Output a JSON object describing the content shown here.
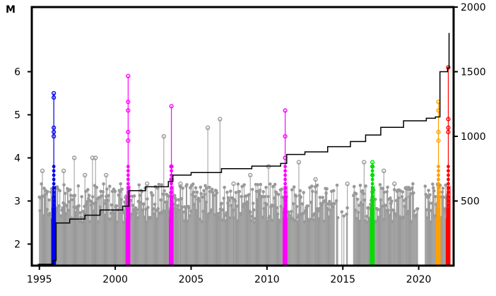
{
  "chart_data": {
    "type": "scatter",
    "description_axes": "stem plot of magnitudes over time with cumulative count step line on right axis",
    "ylabel_left": "M",
    "xlim": [
      1994.5,
      2022.3
    ],
    "ylim_left": [
      1.5,
      7.5
    ],
    "ylim_right": [
      0,
      2000
    ],
    "x_ticks": [
      "1995",
      "2000",
      "2005",
      "2010",
      "2015",
      "2020"
    ],
    "x_tick_values": [
      1995,
      2000,
      2005,
      2010,
      2015,
      2020
    ],
    "y_left_ticks": [
      "2",
      "3",
      "4",
      "5",
      "6"
    ],
    "y_left_tick_values": [
      2,
      3,
      4,
      5,
      6
    ],
    "y_right_ticks": [
      "500",
      "1000",
      "1500",
      "2000"
    ],
    "y_right_tick_values": [
      500,
      1000,
      1500,
      2000
    ],
    "colors": {
      "background": "#999999",
      "swarm_1996": "#0000ee",
      "swarm_2000": "#ff00ff",
      "swarm_2003": "#ff00ff",
      "swarm_2011": "#ff00ff",
      "swarm_2017": "#00dd00",
      "swarm_2021": "#ffa000",
      "swarm_2022": "#ff0000",
      "cumulative": "#000000"
    },
    "highlight_series": [
      {
        "key": "swarm_1996",
        "x": 1995.95,
        "max_mag": 5.5,
        "top_marks": [
          5.5,
          5.4,
          4.7,
          4.6,
          4.5
        ]
      },
      {
        "key": "swarm_2000",
        "x": 2000.85,
        "max_mag": 5.9,
        "top_marks": [
          5.9,
          5.3,
          5.1,
          4.6,
          4.4
        ]
      },
      {
        "key": "swarm_2003",
        "x": 2003.7,
        "max_mag": 5.2,
        "top_marks": [
          5.2,
          3.8,
          3.5
        ]
      },
      {
        "key": "swarm_2011",
        "x": 2011.2,
        "max_mag": 5.1,
        "top_marks": [
          5.1,
          4.5,
          4.0
        ]
      },
      {
        "key": "swarm_2017",
        "x": 2016.95,
        "max_mag": 3.9,
        "top_marks": [
          3.9,
          3.8,
          3.6
        ]
      },
      {
        "key": "swarm_2021",
        "x": 2021.3,
        "max_mag": 5.3,
        "top_marks": [
          5.3,
          5.1,
          4.6,
          4.4
        ]
      },
      {
        "key": "swarm_2022",
        "x": 2021.95,
        "max_mag": 6.1,
        "top_marks": [
          6.1,
          4.9,
          4.7,
          4.6
        ]
      }
    ],
    "background_peaks": [
      {
        "x": 1995.2,
        "m": 3.7
      },
      {
        "x": 1996.6,
        "m": 3.7
      },
      {
        "x": 1997.3,
        "m": 4.0
      },
      {
        "x": 1998.0,
        "m": 3.6
      },
      {
        "x": 1998.5,
        "m": 4.0
      },
      {
        "x": 1998.7,
        "m": 4.0
      },
      {
        "x": 1999.4,
        "m": 3.6
      },
      {
        "x": 2002.1,
        "m": 3.4
      },
      {
        "x": 2003.2,
        "m": 4.5
      },
      {
        "x": 2004.3,
        "m": 3.4
      },
      {
        "x": 2006.1,
        "m": 4.7
      },
      {
        "x": 2006.9,
        "m": 4.9
      },
      {
        "x": 2007.8,
        "m": 3.4
      },
      {
        "x": 2008.9,
        "m": 3.6
      },
      {
        "x": 2010.1,
        "m": 3.8
      },
      {
        "x": 2012.1,
        "m": 3.9
      },
      {
        "x": 2013.2,
        "m": 3.5
      },
      {
        "x": 2015.3,
        "m": 3.4
      },
      {
        "x": 2016.4,
        "m": 3.9
      },
      {
        "x": 2017.7,
        "m": 3.7
      },
      {
        "x": 2018.4,
        "m": 3.4
      },
      {
        "x": 2019.2,
        "m": 3.3
      },
      {
        "x": 2020.6,
        "m": 3.1
      }
    ],
    "cumulative_count": [
      {
        "x": 1994.9,
        "n": 10
      },
      {
        "x": 1995.9,
        "n": 40
      },
      {
        "x": 1996.1,
        "n": 330
      },
      {
        "x": 1997.0,
        "n": 360
      },
      {
        "x": 1998.0,
        "n": 390
      },
      {
        "x": 1999.0,
        "n": 430
      },
      {
        "x": 2000.5,
        "n": 460
      },
      {
        "x": 2000.9,
        "n": 580
      },
      {
        "x": 2002.0,
        "n": 610
      },
      {
        "x": 2003.5,
        "n": 650
      },
      {
        "x": 2003.8,
        "n": 700
      },
      {
        "x": 2005.0,
        "n": 720
      },
      {
        "x": 2007.0,
        "n": 750
      },
      {
        "x": 2009.0,
        "n": 770
      },
      {
        "x": 2010.9,
        "n": 790
      },
      {
        "x": 2011.3,
        "n": 860
      },
      {
        "x": 2012.5,
        "n": 880
      },
      {
        "x": 2014.0,
        "n": 920
      },
      {
        "x": 2015.5,
        "n": 960
      },
      {
        "x": 2016.5,
        "n": 1010
      },
      {
        "x": 2017.5,
        "n": 1070
      },
      {
        "x": 2019.0,
        "n": 1120
      },
      {
        "x": 2020.5,
        "n": 1140
      },
      {
        "x": 2021.1,
        "n": 1150
      },
      {
        "x": 2021.4,
        "n": 1500
      },
      {
        "x": 2021.9,
        "n": 1530
      },
      {
        "x": 2022.0,
        "n": 1800
      }
    ]
  }
}
